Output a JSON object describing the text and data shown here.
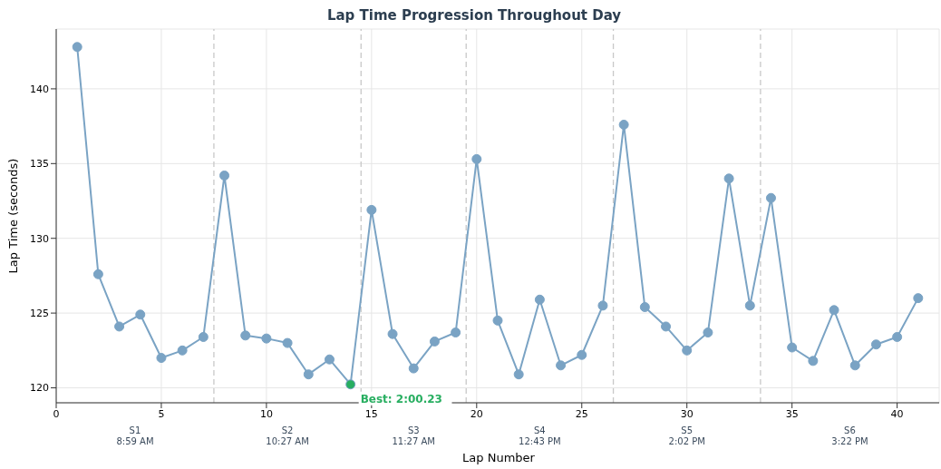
{
  "chart_data": {
    "type": "line",
    "title": "Lap Time Progression Throughout Day",
    "xlabel": "Lap Number",
    "ylabel": "Lap Time (seconds)",
    "x": [
      1,
      2,
      3,
      4,
      5,
      6,
      7,
      8,
      9,
      10,
      11,
      12,
      13,
      14,
      15,
      16,
      17,
      18,
      19,
      20,
      21,
      22,
      23,
      24,
      25,
      26,
      27,
      28,
      29,
      30,
      31,
      32,
      33,
      34,
      35,
      36,
      37,
      38,
      39,
      40,
      41
    ],
    "series": [
      {
        "color": "#7aa3c4",
        "values": [
          142.8,
          127.6,
          124.1,
          124.9,
          122.0,
          122.5,
          123.4,
          134.2,
          123.5,
          123.3,
          123.0,
          120.9,
          121.9,
          120.23,
          131.9,
          123.6,
          121.3,
          123.1,
          123.7,
          135.3,
          124.5,
          120.9,
          125.9,
          121.5,
          122.2,
          125.5,
          137.6,
          125.4,
          124.1,
          122.5,
          123.7,
          134.0,
          125.5,
          132.7,
          122.7,
          121.8,
          125.2,
          121.5,
          122.9,
          123.4,
          126.0
        ]
      },
      {
        "type": "scatter",
        "color": "#27ae60",
        "x": [
          14
        ],
        "values": [
          120.23
        ]
      }
    ],
    "xlim": [
      0,
      42
    ],
    "xticks": [
      0,
      5,
      10,
      15,
      20,
      25,
      30,
      35,
      40
    ],
    "ylim": [
      119,
      144
    ],
    "yticks": [
      120,
      125,
      130,
      135,
      140
    ],
    "grid": true,
    "legend": false,
    "marker": "circle",
    "line_style": "solid",
    "ref_lines": [
      {
        "axis": "x",
        "value": 7.5,
        "color": "#c8c8c8",
        "line_style": "dashed"
      },
      {
        "axis": "x",
        "value": 14.5,
        "color": "#c8c8c8",
        "line_style": "dashed"
      },
      {
        "axis": "x",
        "value": 19.5,
        "color": "#c8c8c8",
        "line_style": "dashed"
      },
      {
        "axis": "x",
        "value": 26.5,
        "color": "#c8c8c8",
        "line_style": "dashed"
      },
      {
        "axis": "x",
        "value": 33.5,
        "color": "#c8c8c8",
        "line_style": "dashed"
      }
    ],
    "annotations": [
      {
        "text": "Best: 2:00.23",
        "x": 14,
        "y": 120.23
      },
      "S1\n8:59 AM",
      "S2\n10:27 AM",
      "S3\n11:27 AM",
      "S4\n12:43 PM",
      "S5\n2:02 PM",
      "S6\n3:22 PM"
    ]
  }
}
